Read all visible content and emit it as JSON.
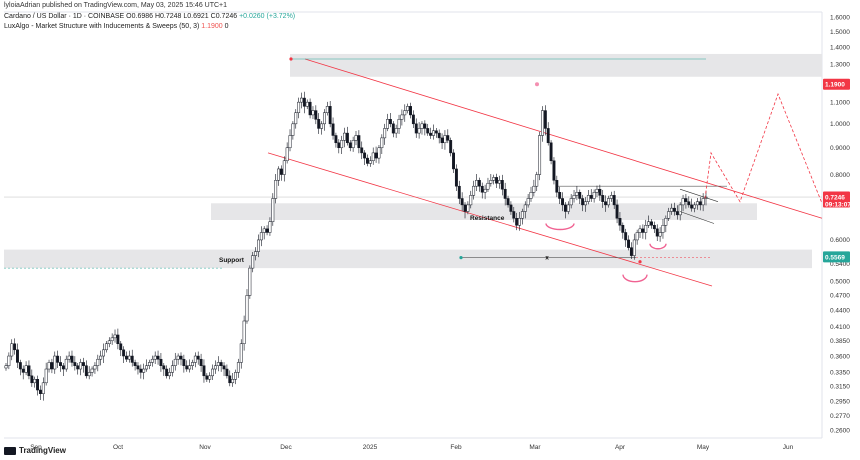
{
  "header": {
    "credit": "lyloiaAdrian published on TradingView.com, May 03, 2025 15:46 UTC+1",
    "symbol": "Cardano / US Dollar · 1D · COINBASE",
    "ohlc_o": "O0.6986",
    "ohlc_h": "H0.7248",
    "ohlc_l": "L0.6921",
    "ohlc_c": "C0.7246",
    "change": "+0.0260 (+3.72%)",
    "indicator": "LuxAlgo - Market Structure with Inducements & Sweeps (50, 3)",
    "indicator_val1": "1.1900",
    "indicator_val2": "0"
  },
  "footer": {
    "brand": "TradingView"
  },
  "colors": {
    "up": "#26a69a",
    "down": "#ef5350",
    "candle": "#131722",
    "channel": "#f23645",
    "zone": "#e6e6e8",
    "teal": "#26a69a"
  },
  "chart_data": {
    "type": "candlestick",
    "title": "Cardano / US Dollar · 1D · COINBASE",
    "y_scale": "log",
    "y_ticks": [
      "1.6000",
      "1.5000",
      "1.4000",
      "1.3000",
      "1.2000",
      "1.1000",
      "1.0000",
      "0.9000",
      "0.8000",
      "0.7000",
      "0.6000",
      "0.5600",
      "0.5400",
      "0.5000",
      "0.4700",
      "0.4400",
      "0.4100",
      "0.3850",
      "0.3600",
      "0.3350",
      "0.3150",
      "0.2950",
      "0.2770",
      "0.2600"
    ],
    "x_ticks": [
      "Sep",
      "Oct",
      "Nov",
      "Dec",
      "2025",
      "Feb",
      "Mar",
      "Apr",
      "May",
      "Jun"
    ],
    "current_price": "0.7246",
    "countdown": "09:13:07",
    "resistance_tag": "1.1900",
    "support_tag": "0.5569",
    "annotations": {
      "resistance": "Resistance",
      "support": "Support",
      "sweep_marker": "x"
    },
    "closes": [
      0.345,
      0.36,
      0.38,
      0.37,
      0.35,
      0.34,
      0.335,
      0.345,
      0.33,
      0.32,
      0.325,
      0.31,
      0.305,
      0.32,
      0.34,
      0.35,
      0.34,
      0.36,
      0.35,
      0.345,
      0.34,
      0.355,
      0.36,
      0.35,
      0.345,
      0.34,
      0.35,
      0.345,
      0.33,
      0.335,
      0.34,
      0.345,
      0.355,
      0.36,
      0.37,
      0.38,
      0.385,
      0.39,
      0.395,
      0.38,
      0.37,
      0.36,
      0.355,
      0.36,
      0.35,
      0.345,
      0.34,
      0.335,
      0.34,
      0.345,
      0.35,
      0.355,
      0.36,
      0.355,
      0.345,
      0.34,
      0.33,
      0.335,
      0.345,
      0.355,
      0.36,
      0.355,
      0.345,
      0.34,
      0.345,
      0.35,
      0.36,
      0.355,
      0.345,
      0.33,
      0.325,
      0.33,
      0.34,
      0.345,
      0.35,
      0.345,
      0.34,
      0.33,
      0.32,
      0.325,
      0.335,
      0.35,
      0.38,
      0.42,
      0.47,
      0.53,
      0.56,
      0.57,
      0.6,
      0.62,
      0.63,
      0.62,
      0.65,
      0.72,
      0.78,
      0.82,
      0.8,
      0.85,
      0.9,
      0.95,
      1.0,
      1.05,
      1.1,
      1.12,
      1.08,
      1.1,
      1.04,
      1.06,
      1.02,
      0.98,
      1.0,
      1.05,
      1.08,
      1.0,
      0.95,
      0.92,
      0.9,
      0.93,
      0.96,
      0.92,
      0.9,
      0.93,
      0.95,
      0.9,
      0.88,
      0.86,
      0.84,
      0.85,
      0.88,
      0.86,
      0.9,
      0.94,
      0.98,
      1.02,
      1.0,
      0.96,
      0.98,
      1.02,
      1.04,
      1.06,
      1.08,
      1.04,
      1.0,
      0.96,
      0.98,
      1.0,
      0.98,
      0.96,
      0.95,
      0.97,
      0.96,
      0.94,
      0.92,
      0.95,
      0.93,
      0.88,
      0.82,
      0.76,
      0.72,
      0.7,
      0.68,
      0.7,
      0.73,
      0.76,
      0.78,
      0.76,
      0.74,
      0.75,
      0.77,
      0.78,
      0.79,
      0.77,
      0.78,
      0.75,
      0.72,
      0.7,
      0.68,
      0.66,
      0.64,
      0.66,
      0.68,
      0.7,
      0.72,
      0.74,
      0.76,
      0.8,
      0.95,
      1.06,
      0.98,
      0.92,
      0.85,
      0.78,
      0.74,
      0.72,
      0.7,
      0.68,
      0.7,
      0.72,
      0.73,
      0.74,
      0.72,
      0.7,
      0.71,
      0.73,
      0.72,
      0.74,
      0.75,
      0.73,
      0.71,
      0.7,
      0.72,
      0.73,
      0.7,
      0.66,
      0.64,
      0.62,
      0.6,
      0.58,
      0.56,
      0.6,
      0.62,
      0.63,
      0.62,
      0.64,
      0.65,
      0.64,
      0.63,
      0.61,
      0.62,
      0.64,
      0.66,
      0.68,
      0.69,
      0.68,
      0.67,
      0.7,
      0.72,
      0.71,
      0.7,
      0.69,
      0.7,
      0.71,
      0.7,
      0.72,
      0.7246
    ]
  }
}
